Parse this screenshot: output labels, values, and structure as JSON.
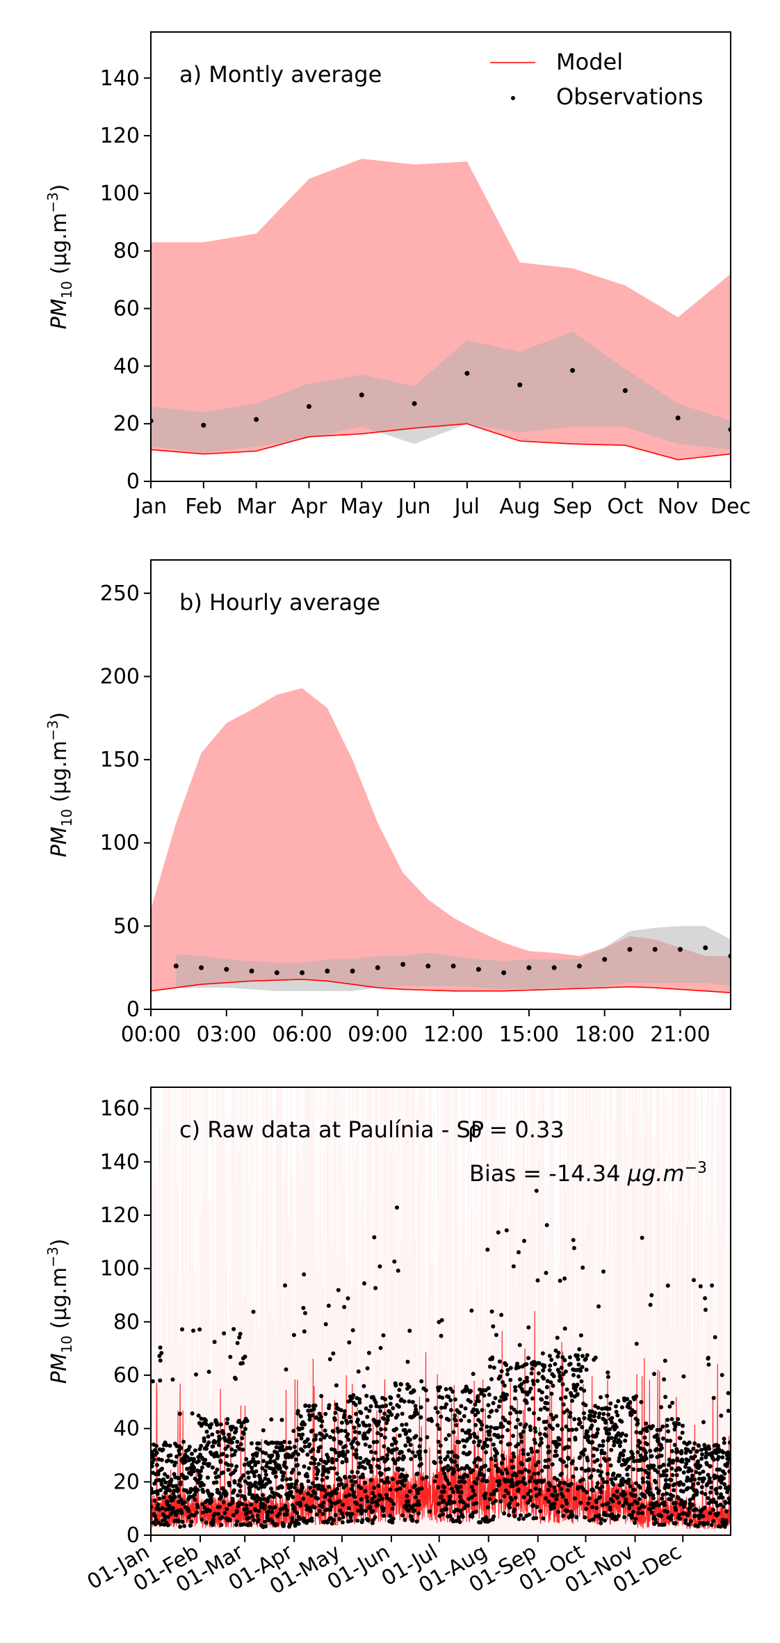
{
  "chart_data": [
    {
      "type": "area",
      "panel": "a",
      "annotation": "a) Montly average",
      "ylabel": "PM",
      "ylabel_sub": "10",
      "ylabel_units": " (μg.m",
      "ylabel_exp": "−3",
      "ylabel_close": ")",
      "xlim": [
        0,
        11
      ],
      "ylim": [
        0,
        156
      ],
      "yticks": [
        0,
        20,
        40,
        60,
        80,
        100,
        120,
        140
      ],
      "categories": [
        "Jan",
        "Feb",
        "Mar",
        "Apr",
        "May",
        "Jun",
        "Jul",
        "Aug",
        "Sep",
        "Oct",
        "Nov",
        "Dec"
      ],
      "legend": {
        "placement": "top-right",
        "model_label": "Model",
        "obs_label": "Observations"
      },
      "model_range": {
        "upper": [
          83,
          83,
          86,
          105,
          112,
          110,
          111,
          76,
          74,
          68,
          57,
          72
        ],
        "lower": [
          11,
          9.5,
          10.5,
          15.5,
          16.5,
          18.5,
          20,
          14,
          13,
          12.5,
          7.5,
          9.5
        ]
      },
      "obs_range": {
        "upper": [
          26,
          24,
          27,
          34,
          37,
          33,
          49,
          45,
          52,
          39,
          27,
          21
        ],
        "lower": [
          12,
          10,
          12,
          15,
          19,
          13,
          20,
          17,
          19,
          19,
          13,
          11
        ]
      },
      "model_line": [
        11,
        9.5,
        10.5,
        15.5,
        16.5,
        18.5,
        20,
        14,
        13,
        12.5,
        7.5,
        9.5
      ],
      "observations": [
        21,
        19.5,
        21.5,
        26,
        30,
        27,
        37.5,
        33.5,
        38.5,
        31.5,
        22,
        18
      ]
    },
    {
      "type": "area",
      "panel": "b",
      "annotation": "b) Hourly average",
      "ylabel": "PM",
      "ylabel_sub": "10",
      "ylabel_units": " (μg.m",
      "ylabel_exp": "−3",
      "ylabel_close": ")",
      "xlim": [
        0,
        23
      ],
      "ylim": [
        0,
        270
      ],
      "yticks": [
        0,
        50,
        100,
        150,
        200,
        250
      ],
      "xtick_values": [
        0,
        3,
        6,
        9,
        12,
        15,
        18,
        21
      ],
      "xtick_labels": [
        "00:00",
        "03:00",
        "06:00",
        "09:00",
        "12:00",
        "15:00",
        "18:00",
        "21:00"
      ],
      "model_range": {
        "x": [
          0,
          1,
          2,
          3,
          4,
          5,
          6,
          7,
          8,
          9,
          10,
          11,
          12,
          13,
          14,
          15,
          16,
          17,
          18,
          19,
          20,
          21,
          22,
          23
        ],
        "upper": [
          60,
          112,
          154,
          172,
          180,
          189,
          193,
          181,
          150,
          112,
          82,
          66,
          55,
          47,
          40,
          35,
          34,
          32,
          37,
          44,
          42,
          37,
          32,
          32
        ],
        "lower": [
          11,
          13,
          15,
          16,
          17,
          17.5,
          18,
          17,
          15,
          13,
          12,
          11.5,
          11,
          11,
          11,
          11.5,
          12,
          12.5,
          13,
          13.5,
          13,
          12,
          11,
          10
        ]
      },
      "obs_range": {
        "x": [
          1,
          2,
          3,
          4,
          5,
          6,
          7,
          8,
          9,
          10,
          11,
          12,
          13,
          14,
          15,
          16,
          17,
          18,
          19,
          20,
          21,
          22,
          23
        ],
        "upper": [
          33,
          32,
          30,
          29,
          28,
          28,
          30,
          30,
          32,
          32,
          34,
          32,
          30,
          29,
          30,
          30,
          30,
          37,
          47,
          49,
          50,
          50,
          42
        ],
        "lower": [
          13,
          13,
          13,
          12,
          11,
          11,
          11,
          11,
          13,
          14,
          14,
          14,
          13,
          12,
          12,
          13,
          13,
          14,
          16,
          16,
          16,
          16,
          14
        ]
      },
      "model_line": {
        "x": [
          0,
          1,
          2,
          3,
          4,
          5,
          6,
          7,
          8,
          9,
          10,
          11,
          12,
          13,
          14,
          15,
          16,
          17,
          18,
          19,
          20,
          21,
          22,
          23
        ],
        "y": [
          11,
          13,
          15,
          16,
          17,
          17.5,
          18,
          17,
          15,
          13,
          12,
          11.5,
          11,
          11,
          11,
          11.5,
          12,
          12.5,
          13,
          13.5,
          13,
          12,
          11,
          10
        ]
      },
      "observations": {
        "x": [
          1,
          2,
          3,
          4,
          5,
          6,
          7,
          8,
          9,
          10,
          11,
          12,
          13,
          14,
          15,
          16,
          17,
          18,
          19,
          20,
          21,
          22,
          23
        ],
        "y": [
          26,
          25,
          24,
          23,
          22,
          22,
          23,
          23,
          25,
          27,
          26,
          26,
          24,
          22,
          25,
          25,
          26,
          30,
          36,
          36,
          36,
          37,
          32
        ]
      }
    },
    {
      "type": "scatter",
      "panel": "c",
      "annotation": "c) Raw data at Paulínia - SP",
      "stat_rho": "ρ = 0.33",
      "stat_bias": "Bias = -14.34 ",
      "stat_bias_units": "μg.m",
      "stat_bias_exp": "−3",
      "ylabel": "PM",
      "ylabel_sub": "10",
      "ylabel_units": " (μg.m",
      "ylabel_exp": "−3",
      "ylabel_close": ")",
      "xlim": [
        "2019-01-01",
        "2019-12-31"
      ],
      "ylim": [
        0,
        168
      ],
      "yticks": [
        0,
        20,
        40,
        60,
        80,
        100,
        120,
        140,
        160
      ],
      "xtick_labels": [
        "01-Jan",
        "01-Feb",
        "01-Mar",
        "01-Apr",
        "01-May",
        "01-Jun",
        "01-Jul",
        "01-Aug",
        "01-Sep",
        "01-Oct",
        "01-Nov",
        "01-Dec"
      ],
      "monthly_obs_typical": [
        20,
        25,
        20,
        28,
        30,
        33,
        32,
        38,
        40,
        30,
        25,
        20
      ],
      "monthly_model_typical": [
        10,
        9,
        9,
        12,
        14,
        15,
        16,
        20,
        14,
        13,
        9,
        7
      ],
      "colors": {
        "model": "#ff0000",
        "model_range": "#ffb0b0",
        "obs_range": "#d4d4d4",
        "obs": "#000000"
      }
    }
  ]
}
